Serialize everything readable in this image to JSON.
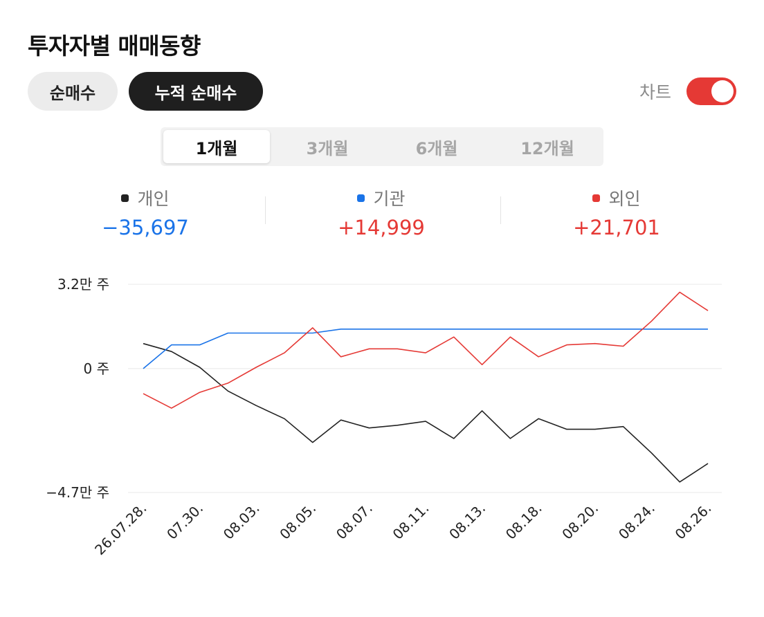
{
  "title": "투자자별 매매동향",
  "modes": {
    "net": "순매수",
    "cumulative": "누적 순매수"
  },
  "chart_toggle": {
    "label": "차트",
    "on": true
  },
  "periods": [
    "1개월",
    "3개월",
    "6개월",
    "12개월"
  ],
  "active_period": "1개월",
  "summary": [
    {
      "name": "개인",
      "value": "−35,697",
      "dot_color": "#222222",
      "value_color": "#1a73e8"
    },
    {
      "name": "기관",
      "value": "+14,999",
      "dot_color": "#1a73e8",
      "value_color": "#e53935"
    },
    {
      "name": "외인",
      "value": "+21,701",
      "dot_color": "#e53935",
      "value_color": "#e53935"
    }
  ],
  "chart_data": {
    "type": "line",
    "x_tick_labels": [
      "26.07.28.",
      "07.30.",
      "08.03.",
      "08.05.",
      "08.07.",
      "08.11.",
      "08.13.",
      "08.18.",
      "08.20.",
      "08.24.",
      "08.26."
    ],
    "y_tick_labels": [
      "3.2만 주",
      "0 주",
      "−4.7만 주"
    ],
    "y_ticks": [
      32000,
      0,
      -47000
    ],
    "ylim": [
      -47000,
      32000
    ],
    "series": [
      {
        "name": "개인",
        "color": "#222222",
        "values": [
          9500,
          6500,
          500,
          -8500,
          -14000,
          -19000,
          -28000,
          -19500,
          -22500,
          -21500,
          -20000,
          -26500,
          -16000,
          -26500,
          -19000,
          -23000,
          -23000,
          -22000,
          -32000,
          -43000,
          -36000
        ]
      },
      {
        "name": "기관",
        "color": "#1a73e8",
        "values": [
          0,
          9000,
          9000,
          13500,
          13500,
          13500,
          13500,
          15000,
          15000,
          15000,
          15000,
          15000,
          15000,
          15000,
          15000,
          15000,
          15000,
          15000,
          15000,
          15000,
          15000
        ]
      },
      {
        "name": "외인",
        "color": "#e53935",
        "values": [
          -9500,
          -15000,
          -9000,
          -5500,
          500,
          6000,
          15500,
          4500,
          7500,
          7500,
          6000,
          12000,
          1500,
          12000,
          4500,
          9000,
          9500,
          8500,
          18000,
          29000,
          22000
        ]
      }
    ]
  }
}
